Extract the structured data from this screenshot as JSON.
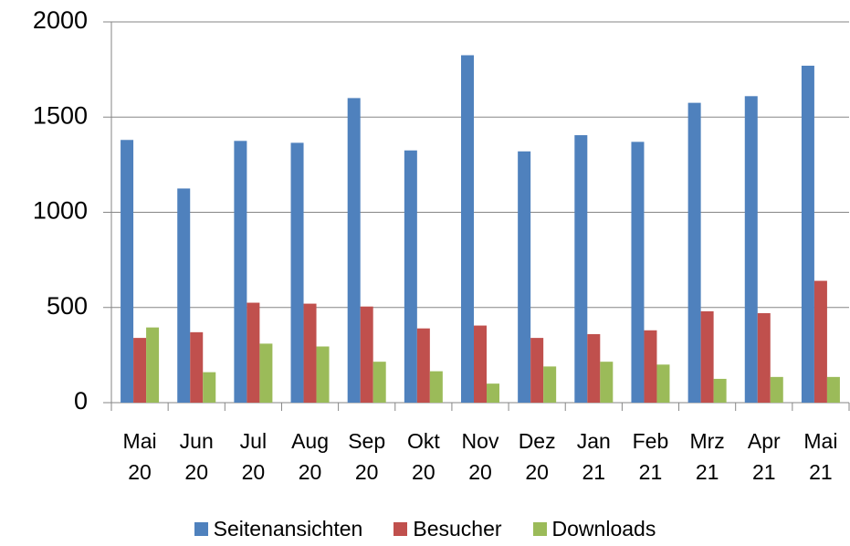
{
  "chart_data": {
    "type": "bar",
    "categories": [
      "Mai 20",
      "Jun 20",
      "Jul 20",
      "Aug 20",
      "Sep 20",
      "Okt 20",
      "Nov 20",
      "Dez 20",
      "Jan 21",
      "Feb 21",
      "Mrz 21",
      "Apr 21",
      "Mai 21"
    ],
    "series": [
      {
        "name": "Seitenansichten",
        "color": "#4f81bd",
        "values": [
          1380,
          1125,
          1375,
          1365,
          1600,
          1325,
          1825,
          1320,
          1405,
          1370,
          1575,
          1610,
          1770
        ]
      },
      {
        "name": "Besucher",
        "color": "#c0504d",
        "values": [
          340,
          370,
          525,
          520,
          505,
          390,
          405,
          340,
          360,
          380,
          480,
          470,
          640
        ]
      },
      {
        "name": "Downloads",
        "color": "#9bbb59",
        "values": [
          395,
          160,
          310,
          295,
          215,
          165,
          100,
          190,
          215,
          200,
          125,
          135,
          135
        ]
      }
    ],
    "ylim": [
      0,
      2000
    ],
    "yticks": [
      0,
      500,
      1000,
      1500,
      2000
    ],
    "grid": true,
    "legend": "bottom"
  }
}
